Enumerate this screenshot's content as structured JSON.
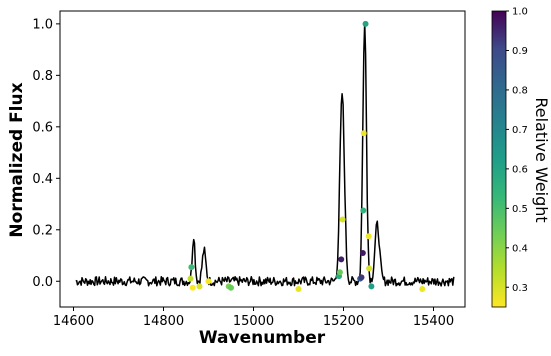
{
  "chart_data": {
    "type": "line",
    "title": "",
    "xlabel": "Wavenumber",
    "ylabel": "Normalized Flux",
    "xlim": [
      14570,
      15470
    ],
    "ylim": [
      -0.1,
      1.05
    ],
    "x_ticks": [
      14600,
      14800,
      15000,
      15200,
      15400
    ],
    "y_ticks": [
      0.0,
      0.2,
      0.4,
      0.6,
      0.8,
      1.0
    ],
    "x_tick_labels": [
      "14600",
      "14800",
      "15000",
      "15200",
      "15400"
    ],
    "y_tick_labels": [
      "0.0",
      "0.2",
      "0.4",
      "0.6",
      "0.8",
      "1.0"
    ],
    "grid": false,
    "line_color": "#000000",
    "spectrum": {
      "x_start": 14605,
      "x_end": 15445,
      "x_step": 2,
      "noise_amplitude": 0.018,
      "peaks": [
        {
          "center": 14867,
          "height": 0.18,
          "width": 3
        },
        {
          "center": 14890,
          "height": 0.12,
          "width": 4
        },
        {
          "center": 15197,
          "height": 0.73,
          "width": 5
        },
        {
          "center": 15247,
          "height": 1.0,
          "width": 4
        },
        {
          "center": 15275,
          "height": 0.22,
          "width": 5
        }
      ]
    },
    "points": [
      {
        "x": 14862,
        "y": 0.055,
        "w": 0.52
      },
      {
        "x": 14860,
        "y": 0.01,
        "w": 0.33
      },
      {
        "x": 14865,
        "y": -0.025,
        "w": 0.25
      },
      {
        "x": 14880,
        "y": -0.02,
        "w": 0.3
      },
      {
        "x": 14900,
        "y": 0.0,
        "w": 0.26
      },
      {
        "x": 14945,
        "y": -0.02,
        "w": 0.42
      },
      {
        "x": 14950,
        "y": -0.025,
        "w": 0.45
      },
      {
        "x": 15100,
        "y": -0.03,
        "w": 0.28
      },
      {
        "x": 15190,
        "y": 0.02,
        "w": 0.58
      },
      {
        "x": 15192,
        "y": 0.035,
        "w": 0.45
      },
      {
        "x": 15195,
        "y": 0.085,
        "w": 0.96
      },
      {
        "x": 15198,
        "y": 0.24,
        "w": 0.3
      },
      {
        "x": 15237,
        "y": 0.01,
        "w": 0.85
      },
      {
        "x": 15240,
        "y": 0.015,
        "w": 0.93
      },
      {
        "x": 15243,
        "y": 0.11,
        "w": 0.97
      },
      {
        "x": 15244,
        "y": 0.275,
        "w": 0.55
      },
      {
        "x": 15245,
        "y": 0.575,
        "w": 0.27
      },
      {
        "x": 15249,
        "y": 1.0,
        "w": 0.6
      },
      {
        "x": 15256,
        "y": 0.175,
        "w": 0.27
      },
      {
        "x": 15257,
        "y": 0.05,
        "w": 0.3
      },
      {
        "x": 15262,
        "y": -0.02,
        "w": 0.62
      },
      {
        "x": 15375,
        "y": -0.03,
        "w": 0.27
      }
    ],
    "colorbar": {
      "label": "Relative Weight",
      "range": [
        0.25,
        1.0
      ],
      "ticks": [
        0.3,
        0.4,
        0.5,
        0.6,
        0.7,
        0.8,
        0.9,
        1.0
      ],
      "tick_labels": [
        "0.3",
        "0.4",
        "0.5",
        "0.6",
        "0.7",
        "0.8",
        "0.9",
        "1.0"
      ],
      "colormap": "viridis"
    }
  }
}
